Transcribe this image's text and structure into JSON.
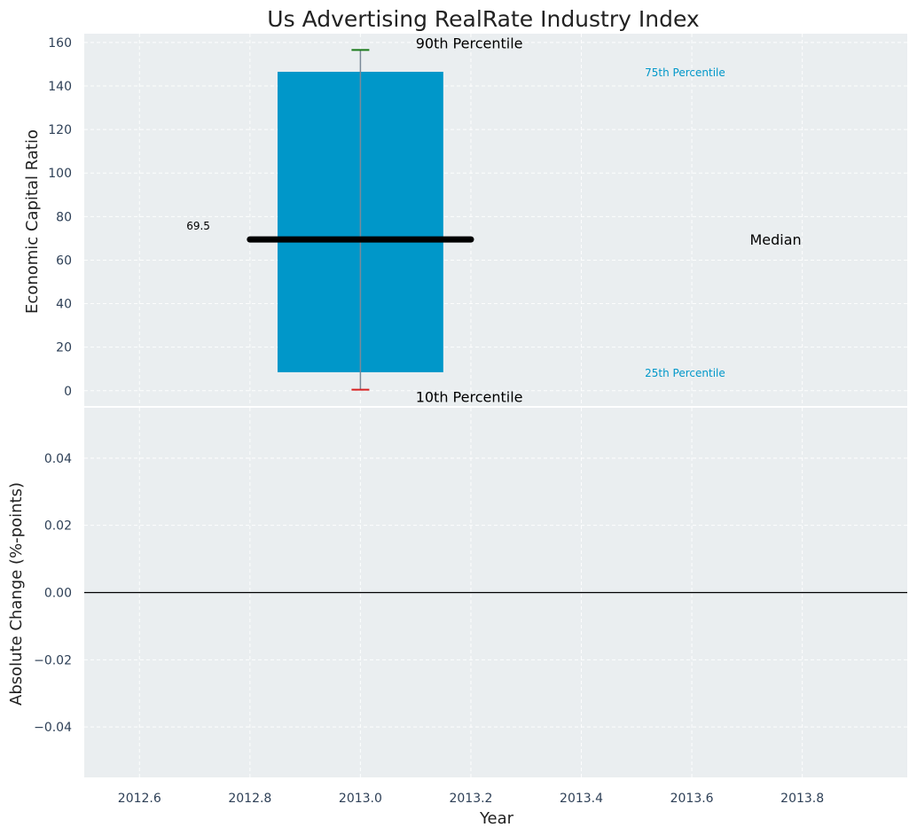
{
  "chart_data": {
    "type": "box",
    "title": "Us Advertising RealRate Industry Index",
    "xlabel": "Year",
    "top_panel": {
      "ylabel": "Economic Capital Ratio",
      "ylim": [
        -7,
        164
      ],
      "yticks": [
        0,
        20,
        40,
        60,
        80,
        100,
        120,
        140,
        160
      ],
      "x": 2013.0,
      "p10": 0.5,
      "p25": 8.5,
      "median": 69.5,
      "p75": 146.5,
      "p90": 156.5,
      "median_value_label": "69.5",
      "labels": {
        "p90": "90th Percentile",
        "p75": "75th Percentile",
        "median": "Median",
        "p25": "25th Percentile",
        "p10": "10th Percentile"
      }
    },
    "bottom_panel": {
      "ylabel": "Absolute Change (%-points)",
      "ylim": [
        -0.055,
        0.055
      ],
      "yticks": [
        0.04,
        0.02,
        0.0,
        -0.02,
        -0.04
      ],
      "ytick_labels": [
        "0.04",
        "0.02",
        "0.00",
        "−0.02",
        "−0.04"
      ],
      "series": []
    },
    "xlim": [
      2012.5,
      2013.99
    ],
    "xticks": [
      2012.6,
      2012.8,
      2013.0,
      2013.2,
      2013.4,
      2013.6,
      2013.8
    ],
    "xtick_labels": [
      "2012.6",
      "2012.8",
      "2013.0",
      "2013.2",
      "2013.4",
      "2013.6",
      "2013.8"
    ]
  },
  "colors": {
    "box": "#0097c9",
    "median": "#000000",
    "whisker_top": "#1a7a1a",
    "whisker_bottom": "#d62020",
    "whisker_line": "#7a8a99"
  }
}
